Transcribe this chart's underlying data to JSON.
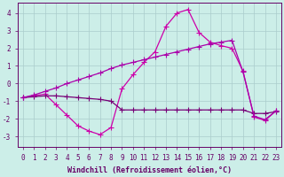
{
  "xlabel": "Windchill (Refroidissement éolien,°C)",
  "background_color": "#cceee8",
  "grid_color": "#aacccc",
  "line1_color": "#cc00aa",
  "line2_color": "#770077",
  "line3_color": "#aa00aa",
  "x_ticks": [
    0,
    1,
    2,
    3,
    4,
    5,
    6,
    7,
    8,
    9,
    10,
    11,
    12,
    13,
    14,
    15,
    16,
    17,
    18,
    19,
    20,
    21,
    22,
    23
  ],
  "yticks": [
    -3,
    -2,
    -1,
    0,
    1,
    2,
    3,
    4
  ],
  "ylim": [
    -3.6,
    4.6
  ],
  "xlim": [
    -0.5,
    23.5
  ],
  "line1_x": [
    0,
    1,
    2,
    3,
    4,
    5,
    6,
    7,
    8,
    9,
    10,
    11,
    12,
    13,
    14,
    15,
    16,
    17,
    18,
    19,
    20,
    21,
    22,
    23
  ],
  "line1_y": [
    -0.8,
    -0.7,
    -0.6,
    -1.2,
    -1.8,
    -2.4,
    -2.7,
    -2.9,
    -2.5,
    -0.3,
    0.5,
    1.2,
    1.8,
    3.25,
    4.0,
    4.2,
    2.9,
    2.35,
    2.15,
    2.0,
    0.7,
    -1.9,
    -2.1,
    -1.55
  ],
  "line2_x": [
    0,
    1,
    2,
    3,
    4,
    5,
    6,
    7,
    8,
    9,
    10,
    11,
    12,
    13,
    14,
    15,
    16,
    17,
    18,
    19,
    20,
    21,
    22,
    23
  ],
  "line2_y": [
    -0.8,
    -0.75,
    -0.7,
    -0.7,
    -0.75,
    -0.8,
    -0.85,
    -0.9,
    -1.0,
    -1.5,
    -1.5,
    -1.5,
    -1.5,
    -1.5,
    -1.5,
    -1.5,
    -1.5,
    -1.5,
    -1.5,
    -1.5,
    -1.5,
    -1.7,
    -1.7,
    -1.6
  ],
  "line3_x": [
    0,
    1,
    2,
    3,
    4,
    5,
    6,
    7,
    8,
    9,
    10,
    11,
    12,
    13,
    14,
    15,
    16,
    17,
    18,
    19,
    20,
    21,
    22,
    23
  ],
  "line3_y": [
    -0.8,
    -0.65,
    -0.45,
    -0.25,
    0.0,
    0.2,
    0.4,
    0.6,
    0.85,
    1.05,
    1.2,
    1.35,
    1.5,
    1.65,
    1.8,
    1.95,
    2.1,
    2.25,
    2.35,
    2.45,
    0.65,
    -1.85,
    -2.05,
    -1.55
  ],
  "tick_fontsize": 5.5,
  "label_fontsize": 6,
  "spine_color": "#660066",
  "tick_color": "#660066",
  "label_color": "#660066"
}
